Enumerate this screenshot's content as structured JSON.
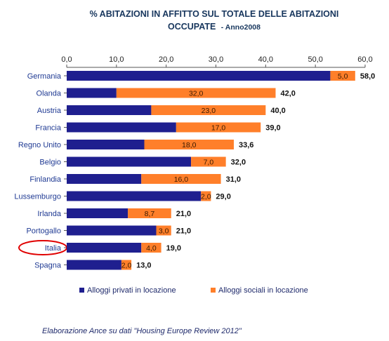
{
  "chart_data": {
    "type": "bar",
    "orientation": "horizontal",
    "stacked": true,
    "title_line1": "% ABITAZIONI IN AFFITTO SUL TOTALE DELLE ABITAZIONI",
    "title_line2_main": "OCCUPATE",
    "title_line2_sub": "- Anno2008",
    "xlim": [
      0,
      60
    ],
    "xticks": [
      "0,0",
      "10,0",
      "20,0",
      "30,0",
      "40,0",
      "50,0",
      "60,0"
    ],
    "categories": [
      "Germania",
      "Olanda",
      "Austria",
      "Francia",
      "Regno Unito",
      "Belgio",
      "Finlandia",
      "Lussemburgo",
      "Irlanda",
      "Portogallo",
      "Italia",
      "Spagna"
    ],
    "series": [
      {
        "name": "Alloggi  privati in locazione",
        "color": "#1f1f8f",
        "values": [
          53.0,
          10.0,
          17.0,
          22.0,
          15.6,
          25.0,
          15.0,
          27.0,
          12.3,
          18.0,
          15.0,
          11.0
        ]
      },
      {
        "name": "Alloggi sociali in locazione",
        "color": "#ff7f2a",
        "values": [
          5.0,
          32.0,
          23.0,
          17.0,
          18.0,
          7.0,
          16.0,
          2.0,
          8.7,
          3.0,
          4.0,
          2.0
        ],
        "labels": [
          "5,0",
          "32,0",
          "23,0",
          "17,0",
          "18,0",
          "7,0",
          "16,0",
          "2,0",
          "8,7",
          "3,0",
          "4,0",
          "2,0"
        ]
      }
    ],
    "totals": [
      58.0,
      42.0,
      40.0,
      39.0,
      33.6,
      32.0,
      31.0,
      29.0,
      21.0,
      21.0,
      19.0,
      13.0
    ],
    "total_labels": [
      "58,0",
      "42,0",
      "40,0",
      "39,0",
      "33,6",
      "32,0",
      "31,0",
      "29,0",
      "21,0",
      "21,0",
      "19,0",
      "13,0"
    ],
    "highlighted_category": "Italia",
    "highlight_color": "#e00000",
    "legend_position": "bottom"
  },
  "source_note": "Elaborazione Ance su dati \"Housing Europe Review 2012\""
}
